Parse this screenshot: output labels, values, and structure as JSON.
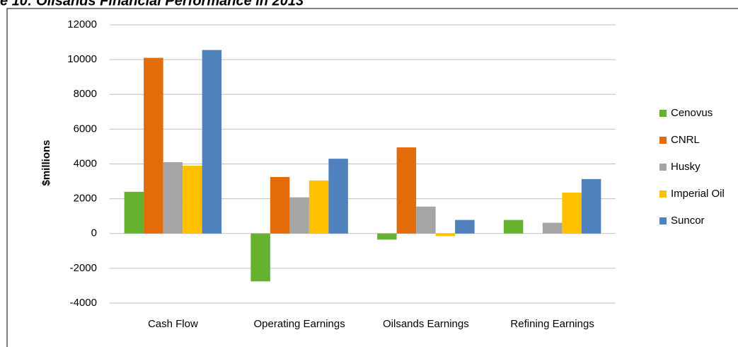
{
  "chart_data": {
    "type": "bar",
    "title": "e 10: Oilsands Financial Performance in 2013",
    "y_label": "$millions",
    "categories": [
      "Cash Flow",
      "Operating Earnings",
      "Oilsands Earnings",
      "Refining Earnings"
    ],
    "series": [
      {
        "name": "Cenovus",
        "color": "#66b22e",
        "values": [
          2400,
          -2750,
          -350,
          780
        ]
      },
      {
        "name": "CNRL",
        "color": "#e36c0a",
        "values": [
          10100,
          3250,
          4950,
          null
        ]
      },
      {
        "name": "Husky",
        "color": "#a5a5a5",
        "values": [
          4100,
          2080,
          1550,
          620
        ]
      },
      {
        "name": "Imperial Oil",
        "color": "#ffc000",
        "values": [
          3900,
          3050,
          -150,
          2350
        ]
      },
      {
        "name": "Suncor",
        "color": "#4f81bd",
        "values": [
          10550,
          4300,
          780,
          3130
        ]
      }
    ],
    "ylim": [
      -4000,
      12000
    ],
    "yticks": [
      -4000,
      -2000,
      0,
      2000,
      4000,
      6000,
      8000,
      10000,
      12000
    ],
    "grid": true,
    "legend": "right"
  }
}
